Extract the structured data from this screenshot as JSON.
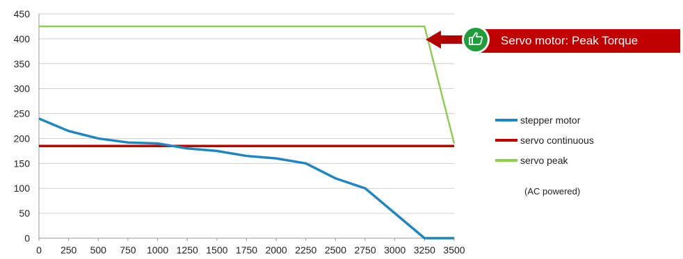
{
  "chart_data": {
    "type": "line",
    "x": [
      0,
      250,
      500,
      750,
      1000,
      1250,
      1500,
      1750,
      2000,
      2250,
      2500,
      2750,
      3000,
      3250,
      3500
    ],
    "xlim": [
      0,
      3500
    ],
    "ylim": [
      0,
      450
    ],
    "xticks": [
      "0",
      "250",
      "500",
      "750",
      "1000",
      "1250",
      "1500",
      "1750",
      "2000",
      "2250",
      "2500",
      "2750",
      "3000",
      "3250",
      "3500"
    ],
    "yticks": [
      "0",
      "50",
      "100",
      "150",
      "200",
      "250",
      "300",
      "350",
      "400",
      "450"
    ],
    "grid": "horizontal",
    "legend_position": "right",
    "series": [
      {
        "name": "stepper motor",
        "color": "#1f86c1",
        "values": [
          240,
          215,
          200,
          192,
          190,
          180,
          175,
          165,
          160,
          150,
          120,
          100,
          50,
          0,
          0
        ]
      },
      {
        "name": "servo continuous",
        "color": "#c00000",
        "values": [
          185,
          185,
          185,
          185,
          185,
          185,
          185,
          185,
          185,
          185,
          185,
          185,
          185,
          185,
          185
        ]
      },
      {
        "name": "servo peak",
        "color": "#8ccf50",
        "values": [
          425,
          425,
          425,
          425,
          425,
          425,
          425,
          425,
          425,
          425,
          425,
          425,
          425,
          425,
          190
        ]
      }
    ],
    "annotations": [
      "(AC powered)"
    ],
    "callout": {
      "text": "Servo motor: Peak Torque",
      "icon": "thumbs-up-icon",
      "color": "#c00000",
      "badge_color": "#1f9d3a"
    }
  }
}
